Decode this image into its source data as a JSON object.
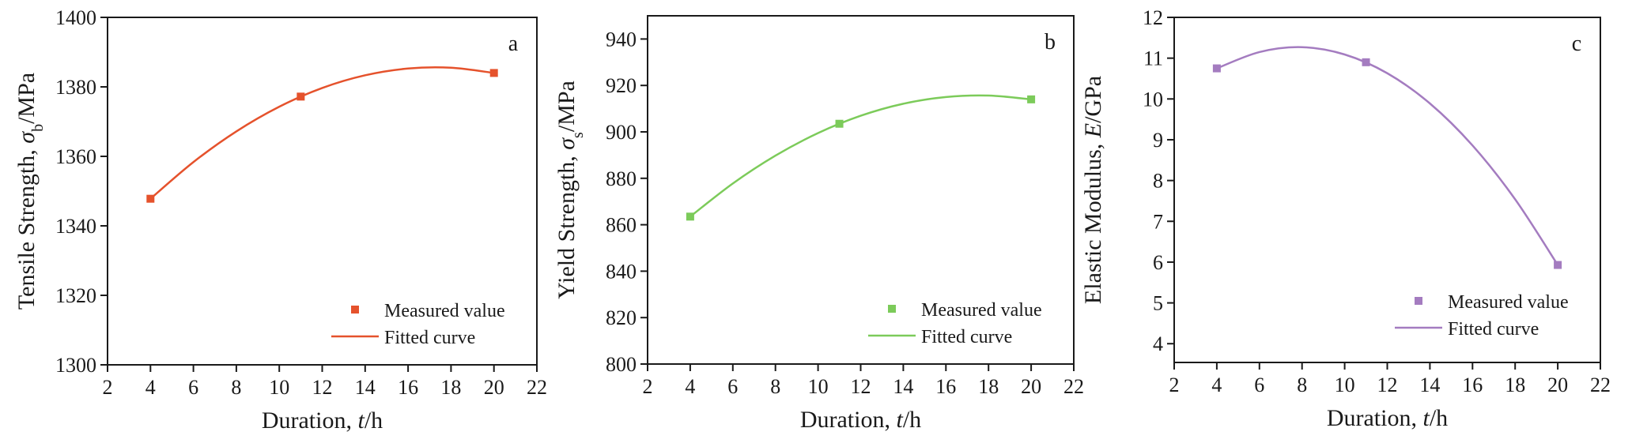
{
  "chart_data": [
    {
      "type": "line",
      "panel_label": "a",
      "ylabel": [
        "Tensile Strength, ",
        "σ",
        "b",
        "/MPa"
      ],
      "xlabel": [
        "Duration, ",
        "t",
        "/h"
      ],
      "xlim": [
        2,
        22
      ],
      "xticks": [
        2,
        4,
        6,
        8,
        10,
        12,
        14,
        16,
        18,
        20,
        22
      ],
      "ylim": [
        1300,
        1400
      ],
      "yticks": [
        1300,
        1320,
        1340,
        1360,
        1380,
        1400
      ],
      "legend": "lower right",
      "series": [
        {
          "name": "Measured value",
          "style": "marker",
          "color": "#e5522c",
          "x": [
            4,
            11,
            20
          ],
          "values": [
            1347.8,
            1377.2,
            1384.0
          ]
        },
        {
          "name": "Fitted curve",
          "style": "line",
          "color": "#e5522c",
          "x": [
            4,
            6,
            8,
            10,
            12,
            14,
            16,
            18,
            20
          ],
          "values": [
            1347.8,
            1358.35,
            1367.18,
            1374.29,
            1379.68,
            1383.34,
            1385.28,
            1385.5,
            1384.0
          ]
        }
      ]
    },
    {
      "type": "line",
      "panel_label": "b",
      "ylabel": [
        "Yield Strength, ",
        "σ",
        "s",
        "/MPa"
      ],
      "xlabel": [
        "Duration, ",
        "t",
        "/h"
      ],
      "xlim": [
        2,
        22
      ],
      "xticks": [
        2,
        4,
        6,
        8,
        10,
        12,
        14,
        16,
        18,
        20,
        22
      ],
      "ylim": [
        800,
        950
      ],
      "yticks": [
        800,
        820,
        840,
        860,
        880,
        900,
        920,
        940
      ],
      "legend": "lower right",
      "series": [
        {
          "name": "Measured value",
          "style": "marker",
          "color": "#7ccb5a",
          "x": [
            4,
            11,
            20
          ],
          "values": [
            863.5,
            903.5,
            914.0
          ]
        },
        {
          "name": "Fitted curve",
          "style": "line",
          "color": "#7ccb5a",
          "x": [
            4,
            6,
            8,
            10,
            12,
            14,
            16,
            18,
            20
          ],
          "values": [
            863.5,
            877.77,
            889.77,
            899.49,
            906.94,
            912.12,
            915.02,
            915.65,
            914.0
          ]
        }
      ]
    },
    {
      "type": "line",
      "panel_label": "c",
      "ylabel": [
        "Elastic Modulus, ",
        "E",
        "",
        "/GPa"
      ],
      "xlabel": [
        "Duration, ",
        "t",
        "/h"
      ],
      "xlim": [
        2,
        22
      ],
      "xticks": [
        2,
        4,
        6,
        8,
        10,
        12,
        14,
        16,
        18,
        20,
        22
      ],
      "ylim": [
        3.54,
        12
      ],
      "yticks": [
        4,
        5,
        6,
        7,
        8,
        9,
        10,
        11,
        12
      ],
      "legend": "lower right",
      "series": [
        {
          "name": "Measured value",
          "style": "marker",
          "color": "#a47cc0",
          "x": [
            4,
            11,
            20
          ],
          "values": [
            10.75,
            10.9,
            5.93
          ]
        },
        {
          "name": "Fitted curve",
          "style": "line",
          "color": "#a47cc0",
          "x": [
            4,
            6,
            8,
            10,
            12,
            14,
            16,
            18,
            20
          ],
          "values": [
            10.75,
            11.15,
            11.27,
            11.09,
            10.63,
            9.89,
            8.86,
            7.54,
            5.93
          ]
        }
      ]
    }
  ]
}
